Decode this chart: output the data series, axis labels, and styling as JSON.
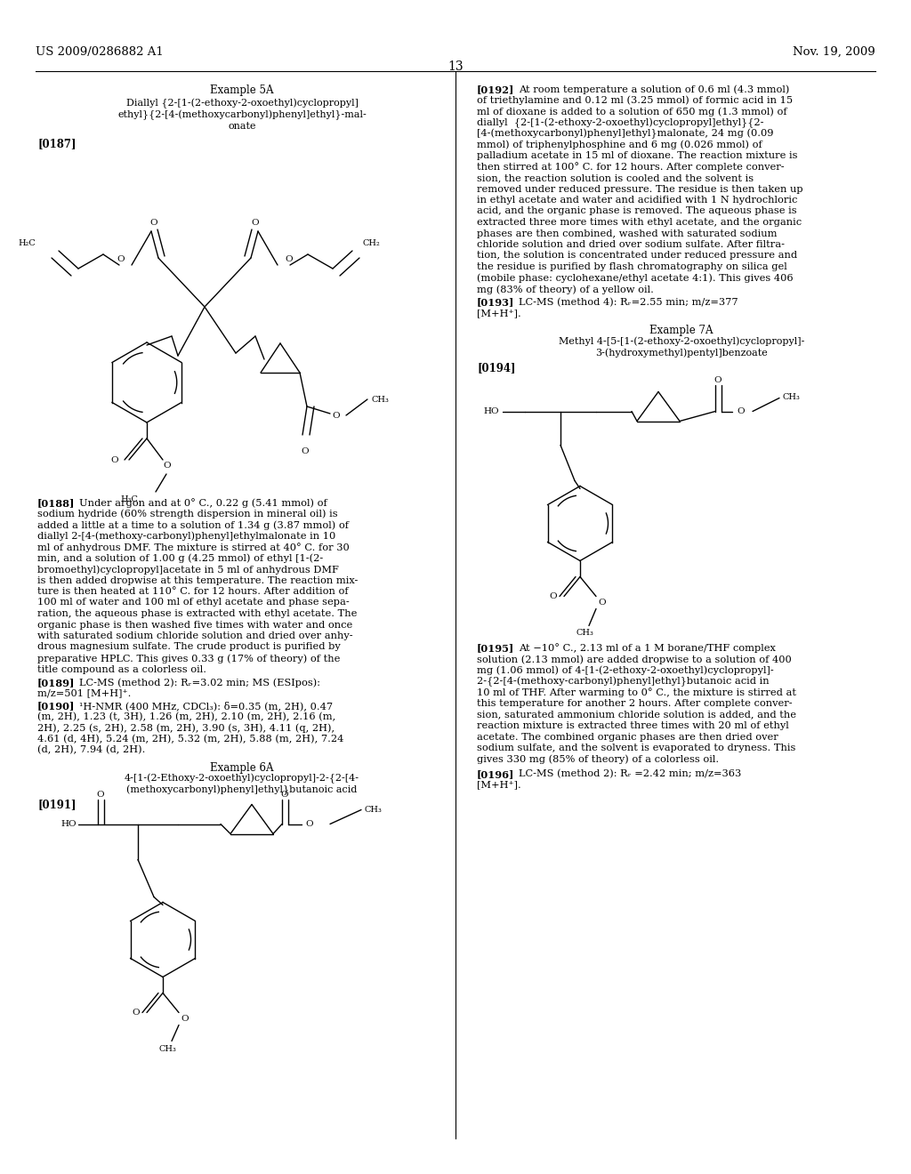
{
  "background_color": "#ffffff",
  "header_left": "US 2009/0286882 A1",
  "header_right": "Nov. 19, 2009",
  "page_number": "13"
}
